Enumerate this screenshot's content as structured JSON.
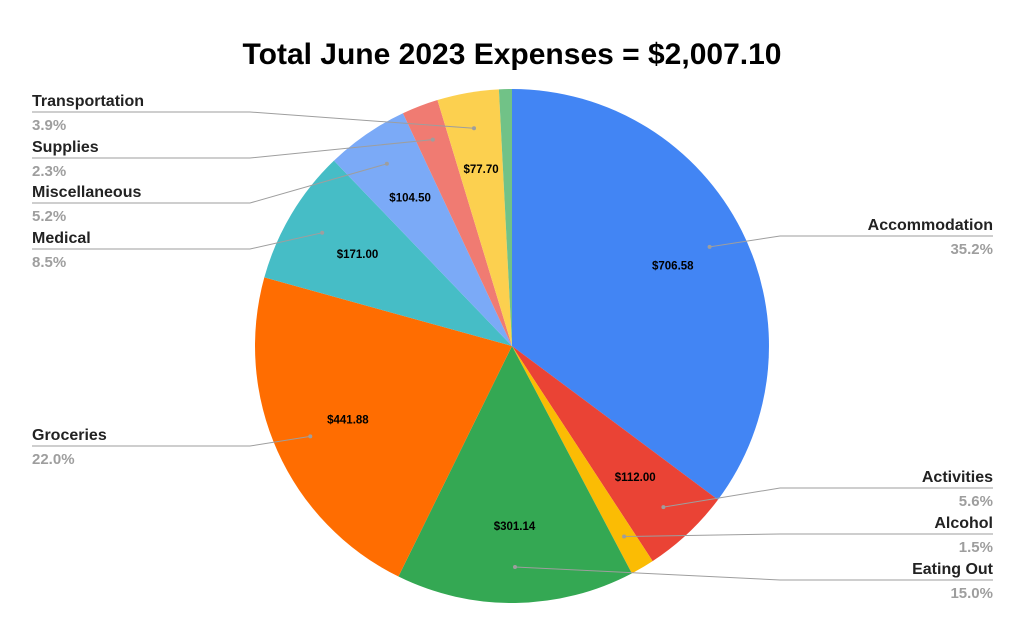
{
  "chart_data": {
    "type": "pie",
    "title": "Total June 2023 Expenses = $2,007.10",
    "slices": [
      {
        "name": "Accommodation",
        "value": 706.58,
        "value_label": "$706.58",
        "percent": "35.2%",
        "color": "#4285f4"
      },
      {
        "name": "Activities",
        "value": 112.0,
        "value_label": "$112.00",
        "percent": "5.6%",
        "color": "#ea4335"
      },
      {
        "name": "Alcohol",
        "value": 30.0,
        "value_label": "",
        "percent": "1.5%",
        "color": "#fbbc04"
      },
      {
        "name": "Eating Out",
        "value": 301.14,
        "value_label": "$301.14",
        "percent": "15.0%",
        "color": "#34a853"
      },
      {
        "name": "Groceries",
        "value": 441.88,
        "value_label": "$441.88",
        "percent": "22.0%",
        "color": "#ff6d01"
      },
      {
        "name": "Medical",
        "value": 171.0,
        "value_label": "$171.00",
        "percent": "8.5%",
        "color": "#46bdc6"
      },
      {
        "name": "Miscellaneous",
        "value": 104.5,
        "value_label": "$104.50",
        "percent": "5.2%",
        "color": "#7baaf7"
      },
      {
        "name": "Supplies",
        "value": 46.0,
        "value_label": "",
        "percent": "2.3%",
        "color": "#f07b72"
      },
      {
        "name": "Transportation",
        "value": 77.7,
        "value_label": "$77.70",
        "percent": "3.9%",
        "color": "#fcd04f"
      },
      {
        "name": "",
        "value": 16.3,
        "value_label": "",
        "percent": "",
        "color": "#71c287"
      }
    ]
  }
}
